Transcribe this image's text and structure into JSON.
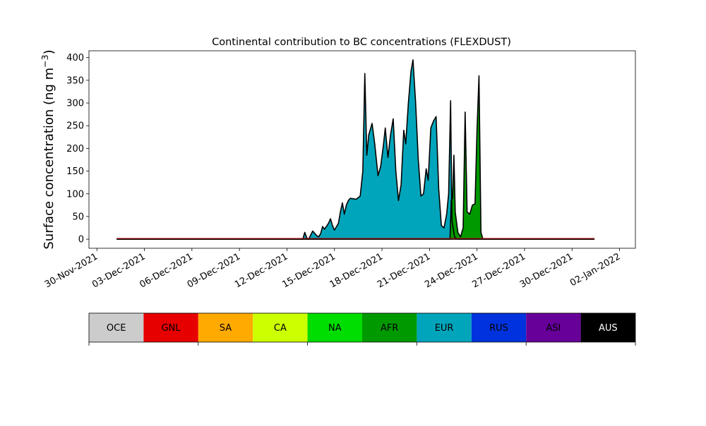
{
  "chart_data": {
    "type": "area",
    "title": "Continental contribution to BC concentrations (FLEXDUST)",
    "ylabel": "Surface concentration (ng m",
    "ylabel_sup": "−3",
    "ylabel_close": ")",
    "xlim": [
      "2021-11-29T12:00",
      "2022-01-03T00:00"
    ],
    "ylim": [
      -20,
      415
    ],
    "yticks": [
      0,
      50,
      100,
      150,
      200,
      250,
      300,
      350,
      400
    ],
    "xticks": [
      {
        "date": "2021-11-30",
        "label": "30-Nov-2021"
      },
      {
        "date": "2021-12-03",
        "label": "03-Dec-2021"
      },
      {
        "date": "2021-12-06",
        "label": "06-Dec-2021"
      },
      {
        "date": "2021-12-09",
        "label": "09-Dec-2021"
      },
      {
        "date": "2021-12-12",
        "label": "12-Dec-2021"
      },
      {
        "date": "2021-12-15",
        "label": "15-Dec-2021"
      },
      {
        "date": "2021-12-18",
        "label": "18-Dec-2021"
      },
      {
        "date": "2021-12-21",
        "label": "21-Dec-2021"
      },
      {
        "date": "2021-12-24",
        "label": "24-Dec-2021"
      },
      {
        "date": "2021-12-27",
        "label": "27-Dec-2021"
      },
      {
        "date": "2021-12-30",
        "label": "30-Dec-2021"
      },
      {
        "date": "2022-01-02",
        "label": "02-Jan-2022"
      }
    ],
    "legend": [
      {
        "label": "OCE",
        "color": "#cccccc"
      },
      {
        "label": "GNL",
        "color": "#e60000"
      },
      {
        "label": "SA",
        "color": "#ffaa00"
      },
      {
        "label": "CA",
        "color": "#ccff00"
      },
      {
        "label": "NA",
        "color": "#00dd00"
      },
      {
        "label": "AFR",
        "color": "#009900"
      },
      {
        "label": "EUR",
        "color": "#00a5bb"
      },
      {
        "label": "RUS",
        "color": "#0033dd"
      },
      {
        "label": "ASI",
        "color": "#660099"
      },
      {
        "label": "AUS",
        "color": "#000000"
      }
    ],
    "series": [
      {
        "label": "EUR",
        "color": "#00a5bb",
        "points": [
          [
            "2021-12-01T06:00",
            0
          ],
          [
            "2021-12-12T18:00",
            0
          ],
          [
            "2021-12-13T00:00",
            0
          ],
          [
            "2021-12-13T03:00",
            15
          ],
          [
            "2021-12-13T06:00",
            3
          ],
          [
            "2021-12-13T09:00",
            0
          ],
          [
            "2021-12-13T15:00",
            18
          ],
          [
            "2021-12-13T21:00",
            8
          ],
          [
            "2021-12-14T00:00",
            5
          ],
          [
            "2021-12-14T03:00",
            12
          ],
          [
            "2021-12-14T06:00",
            28
          ],
          [
            "2021-12-14T09:00",
            22
          ],
          [
            "2021-12-14T15:00",
            35
          ],
          [
            "2021-12-14T18:00",
            45
          ],
          [
            "2021-12-14T21:00",
            30
          ],
          [
            "2021-12-15T00:00",
            20
          ],
          [
            "2021-12-15T06:00",
            35
          ],
          [
            "2021-12-15T09:00",
            60
          ],
          [
            "2021-12-15T12:00",
            80
          ],
          [
            "2021-12-15T15:00",
            55
          ],
          [
            "2021-12-15T18:00",
            75
          ],
          [
            "2021-12-15T21:00",
            85
          ],
          [
            "2021-12-16T00:00",
            90
          ],
          [
            "2021-12-16T09:00",
            88
          ],
          [
            "2021-12-16T15:00",
            95
          ],
          [
            "2021-12-16T19:00",
            150
          ],
          [
            "2021-12-16T22:00",
            365
          ],
          [
            "2021-12-17T01:00",
            185
          ],
          [
            "2021-12-17T04:00",
            230
          ],
          [
            "2021-12-17T09:00",
            255
          ],
          [
            "2021-12-17T13:00",
            210
          ],
          [
            "2021-12-17T18:00",
            140
          ],
          [
            "2021-12-17T22:00",
            160
          ],
          [
            "2021-12-18T02:00",
            205
          ],
          [
            "2021-12-18T05:00",
            245
          ],
          [
            "2021-12-18T09:00",
            180
          ],
          [
            "2021-12-18T13:00",
            230
          ],
          [
            "2021-12-18T17:00",
            265
          ],
          [
            "2021-12-18T21:00",
            150
          ],
          [
            "2021-12-19T01:00",
            85
          ],
          [
            "2021-12-19T05:00",
            120
          ],
          [
            "2021-12-19T09:00",
            240
          ],
          [
            "2021-12-19T12:00",
            210
          ],
          [
            "2021-12-19T16:00",
            300
          ],
          [
            "2021-12-19T20:00",
            370
          ],
          [
            "2021-12-19T23:00",
            395
          ],
          [
            "2021-12-20T03:00",
            300
          ],
          [
            "2021-12-20T07:00",
            175
          ],
          [
            "2021-12-20T11:00",
            95
          ],
          [
            "2021-12-20T15:00",
            100
          ],
          [
            "2021-12-20T19:00",
            155
          ],
          [
            "2021-12-20T22:00",
            130
          ],
          [
            "2021-12-21T02:00",
            245
          ],
          [
            "2021-12-21T06:00",
            260
          ],
          [
            "2021-12-21T10:00",
            270
          ],
          [
            "2021-12-21T14:00",
            110
          ],
          [
            "2021-12-21T18:00",
            30
          ],
          [
            "2021-12-21T22:00",
            25
          ],
          [
            "2021-12-22T02:00",
            55
          ],
          [
            "2021-12-22T05:00",
            100
          ],
          [
            "2021-12-22T08:00",
            305
          ],
          [
            "2021-12-22T10:00",
            40
          ],
          [
            "2021-12-22T14:00",
            5
          ],
          [
            "2021-12-22T18:00",
            0
          ],
          [
            "2021-12-31T10:00",
            0
          ]
        ]
      },
      {
        "label": "AFR",
        "color": "#009900",
        "points": [
          [
            "2021-12-01T06:00",
            0
          ],
          [
            "2021-12-22T07:00",
            0
          ],
          [
            "2021-12-22T09:00",
            85
          ],
          [
            "2021-12-22T11:00",
            90
          ],
          [
            "2021-12-22T13:00",
            185
          ],
          [
            "2021-12-22T15:00",
            60
          ],
          [
            "2021-12-22T19:00",
            15
          ],
          [
            "2021-12-22T23:00",
            5
          ],
          [
            "2021-12-23T03:00",
            25
          ],
          [
            "2021-12-23T06:00",
            280
          ],
          [
            "2021-12-23T09:00",
            60
          ],
          [
            "2021-12-23T13:00",
            55
          ],
          [
            "2021-12-23T17:00",
            75
          ],
          [
            "2021-12-23T21:00",
            78
          ],
          [
            "2021-12-24T00:00",
            240
          ],
          [
            "2021-12-24T03:00",
            360
          ],
          [
            "2021-12-24T06:00",
            15
          ],
          [
            "2021-12-24T09:00",
            0
          ],
          [
            "2021-12-31T10:00",
            0
          ]
        ]
      }
    ],
    "baseline": {
      "label": "GNL",
      "color": "#e60000",
      "from": "2021-12-01T06:00",
      "to": "2021-12-31T10:00",
      "value": 0
    }
  }
}
